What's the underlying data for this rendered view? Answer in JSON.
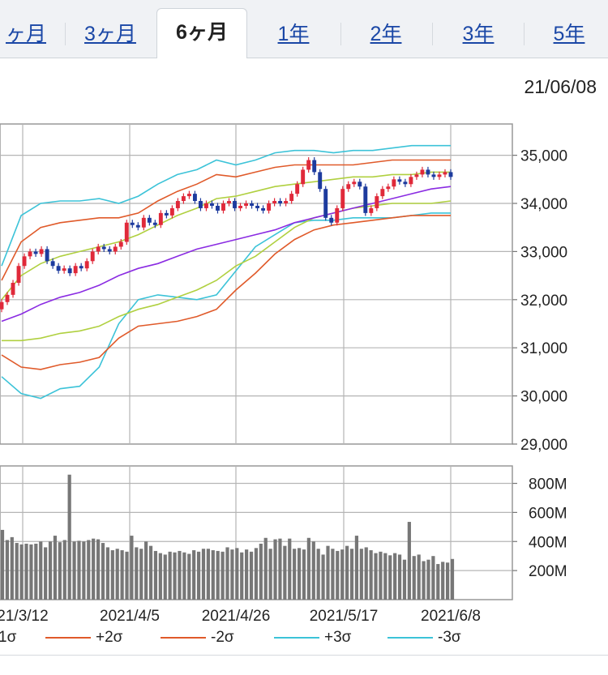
{
  "tabs": [
    {
      "label": "ヶ月",
      "active": false
    },
    {
      "label": "3ヶ月",
      "active": false
    },
    {
      "label": "6ヶ月",
      "active": true
    },
    {
      "label": "1年",
      "active": false
    },
    {
      "label": "2年",
      "active": false
    },
    {
      "label": "3年",
      "active": false
    },
    {
      "label": "5年",
      "active": false
    }
  ],
  "chart_date": "21/06/08",
  "legend": [
    {
      "label": "1σ",
      "color": "#e05a2a"
    },
    {
      "label": "+2σ",
      "color": "#e05a2a"
    },
    {
      "label": "-2σ",
      "color": "#e05a2a"
    },
    {
      "label": "+3σ",
      "color": "#3cc3d8"
    },
    {
      "label": "-3σ",
      "color": "#3cc3d8"
    }
  ],
  "colors": {
    "up": "#e0293a",
    "down": "#1d3b9e",
    "sma": "#8a2be2",
    "sigma1": "#b0d040",
    "sigma2": "#e05a2a",
    "sigma3": "#3cc3d8",
    "volume": "#777777"
  },
  "chart_data": [
    {
      "type": "candlestick",
      "title": "",
      "x_tick_labels": [
        "21/3/12",
        "2021/4/5",
        "2021/4/26",
        "2021/5/17",
        "2021/6/8"
      ],
      "y_tick_labels": [
        "35,000",
        "34,000",
        "33,000",
        "32,000",
        "31,000",
        "30,000",
        "29,000"
      ],
      "ylim": [
        29000,
        35650
      ],
      "grid": true,
      "series_close": [
        31950,
        32100,
        32350,
        32700,
        32900,
        33000,
        32950,
        33050,
        32800,
        32700,
        32600,
        32650,
        32550,
        32700,
        32650,
        32800,
        33000,
        33100,
        33050,
        33000,
        33100,
        33200,
        33600,
        33550,
        33500,
        33700,
        33600,
        33550,
        33800,
        33750,
        33900,
        34050,
        34150,
        34200,
        34050,
        33900,
        34000,
        33950,
        33850,
        34000,
        34050,
        33900,
        33950,
        34000,
        33950,
        33900,
        33850,
        34000,
        34050,
        34000,
        34050,
        34200,
        34400,
        34700,
        34900,
        34650,
        34300,
        33700,
        33600,
        33900,
        34300,
        34400,
        34450,
        34350,
        33800,
        33900,
        34150,
        34300,
        34350,
        34500,
        34450,
        34400,
        34550,
        34600,
        34700,
        34600,
        34550,
        34600,
        34650,
        34550
      ],
      "sma_25": [
        31550,
        31700,
        31900,
        32050,
        32150,
        32300,
        32500,
        32650,
        32750,
        32900,
        33050,
        33150,
        33250,
        33350,
        33450,
        33600,
        33700,
        33800,
        33900,
        34000,
        34100,
        34200,
        34300,
        34350
      ]
    },
    {
      "type": "bar",
      "title": "",
      "x_tick_labels": [
        "21/3/12",
        "2021/4/5",
        "2021/4/26",
        "2021/5/17",
        "2021/6/8"
      ],
      "y_tick_labels": [
        "800M",
        "600M",
        "400M",
        "200M"
      ],
      "ylim": [
        0,
        920
      ],
      "values": [
        480,
        410,
        430,
        390,
        380,
        385,
        380,
        385,
        400,
        360,
        400,
        440,
        395,
        410,
        860,
        400,
        405,
        400,
        410,
        420,
        415,
        390,
        360,
        340,
        350,
        340,
        330,
        440,
        360,
        350,
        400,
        370,
        335,
        320,
        310,
        330,
        325,
        335,
        325,
        315,
        340,
        330,
        350,
        350,
        340,
        335,
        330,
        360,
        345,
        355,
        325,
        345,
        330,
        355,
        385,
        425,
        350,
        415,
        420,
        370,
        420,
        350,
        355,
        345,
        425,
        400,
        350,
        310,
        370,
        350,
        335,
        345,
        370,
        350,
        440,
        350,
        360,
        340,
        320,
        330,
        320,
        305,
        320,
        310,
        275,
        535,
        300,
        310,
        265,
        275,
        300,
        245,
        260,
        255,
        280
      ]
    }
  ]
}
